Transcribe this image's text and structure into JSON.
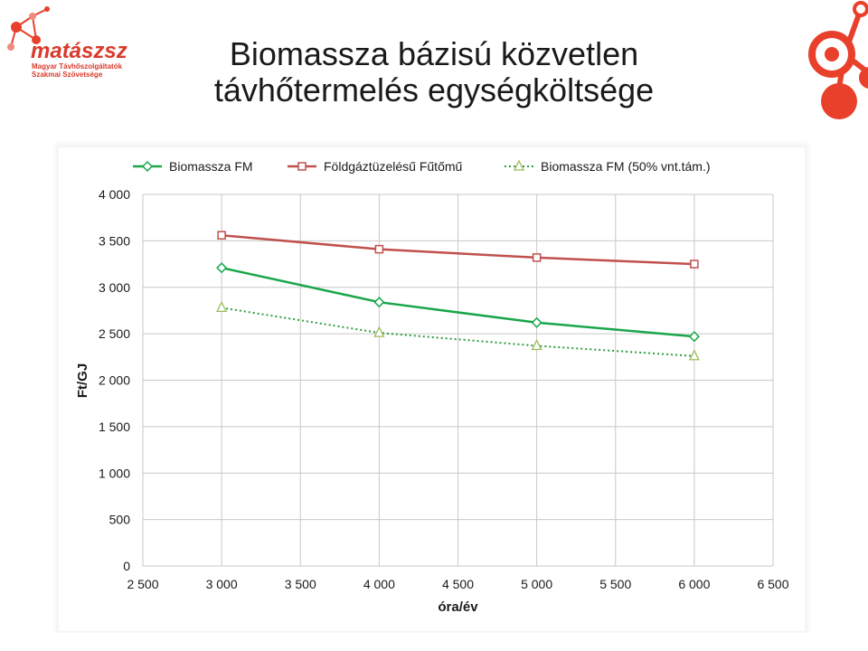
{
  "slide": {
    "title_line1": "Biomassza bázisú közvetlen",
    "title_line2": "távhőtermelés egységköltsége"
  },
  "logo": {
    "brand": "matászsz",
    "subtitle_line1": "Magyar Távhőszolgáltatók",
    "subtitle_line2": "Szakmai Szövetsége",
    "accent": "#e8402a",
    "accent_light": "#f28a7c"
  },
  "chart_data": {
    "type": "line",
    "xlabel": "óra/év",
    "ylabel": "Ft/GJ",
    "xlim": [
      2500,
      6500
    ],
    "ylim": [
      0,
      4000
    ],
    "x_ticks": [
      2500,
      3000,
      3500,
      4000,
      4500,
      5000,
      5500,
      6000,
      6500
    ],
    "x_tick_labels": [
      "2 500",
      "3 000",
      "3 500",
      "4 000",
      "4 500",
      "5 000",
      "5 500",
      "6 000",
      "6 500"
    ],
    "y_ticks": [
      0,
      500,
      1000,
      1500,
      2000,
      2500,
      3000,
      3500,
      4000
    ],
    "y_tick_labels": [
      "0",
      "500",
      "1 000",
      "1 500",
      "2 000",
      "2 500",
      "3 000",
      "3 500",
      "4 000"
    ],
    "grid": true,
    "legend_position": "top",
    "x": [
      3000,
      4000,
      5000,
      6000
    ],
    "series": [
      {
        "name": "Biomassza FM",
        "values": [
          3210,
          2840,
          2620,
          2470
        ],
        "color": "#1aa64a",
        "marker": "diamond",
        "dash": "solid"
      },
      {
        "name": "Földgáztüzelésű Fűtőmű",
        "values": [
          3560,
          3410,
          3320,
          3250
        ],
        "color": "#c0504d",
        "marker": "square",
        "dash": "solid"
      },
      {
        "name": "Biomassza FM (50% vnt.tám.)",
        "values": [
          2780,
          2510,
          2370,
          2260
        ],
        "color": "#2e9e3e",
        "marker": "triangle",
        "dash": "dotted"
      }
    ]
  }
}
